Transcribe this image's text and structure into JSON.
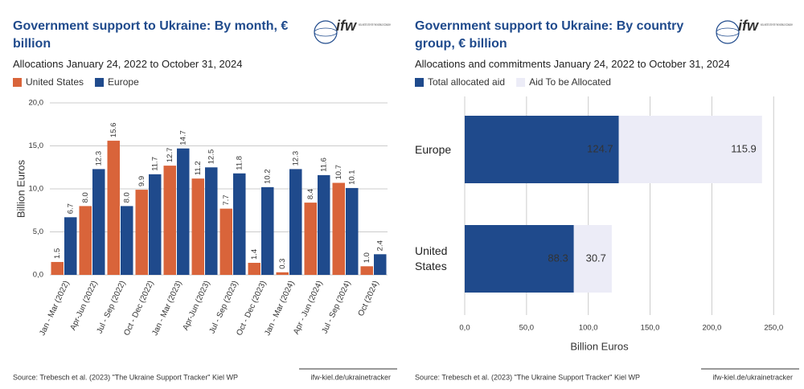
{
  "chart_data": [
    {
      "type": "bar",
      "title": "Government support to Ukraine: By month, € billion",
      "subtitle": "Allocations January 24, 2022 to October 31, 2024",
      "logo": {
        "name": "ifw",
        "text": "KIEL INSTITUTE FOR THE WORLD ECONOMY"
      },
      "ylabel": "Billion Euros",
      "categories": [
        "Jan - Mar (2022)",
        "Apr-Jun (2022)",
        "Jul - Sep (2022)",
        "Oct - Dec (2022)",
        "Jan - Mar (2023)",
        "Apr-Jun (2023)",
        "Jul - Sep (2023)",
        "Oct - Dec (2023)",
        "Jan - Mar (2024)",
        "Apr - Jun (2024)",
        "Jul - Sep (2024)",
        "Oct (2024)"
      ],
      "series": [
        {
          "name": "United States",
          "color": "#d9643a",
          "values": [
            1.5,
            8.0,
            15.6,
            9.9,
            12.7,
            11.2,
            7.7,
            1.4,
            0.3,
            8.4,
            10.7,
            1.0
          ],
          "value_labels": [
            "1.5",
            "8.0",
            "15.6",
            "9.9",
            "12.7",
            "11.2",
            "7.7",
            "1.4",
            "0.3",
            "8.4",
            "10.7",
            "1.0"
          ]
        },
        {
          "name": "Europe",
          "color": "#1f4a8c",
          "values": [
            6.7,
            12.3,
            8.0,
            11.7,
            14.7,
            12.5,
            11.8,
            10.2,
            12.3,
            11.6,
            10.1,
            2.4
          ],
          "value_labels": [
            "6.7",
            "12.3",
            "8.0",
            "11.7",
            "14.7",
            "12.5",
            "11.8",
            "10.2",
            "12.3",
            "11.6",
            "10.1",
            "2.4"
          ]
        }
      ],
      "ylim": [
        0,
        20
      ],
      "yticks": [
        {
          "value": 0,
          "label": "0,0"
        },
        {
          "value": 5,
          "label": "5,0"
        },
        {
          "value": 10,
          "label": "10,0"
        },
        {
          "value": 15,
          "label": "15,0"
        },
        {
          "value": 20,
          "label": "20,0"
        }
      ],
      "grid": true,
      "source": "Source: Trebesch et al. (2023) \"The Ukraine Support Tracker\" Kiel WP",
      "link": "ifw-kiel.de/ukrainetracker"
    },
    {
      "type": "barh",
      "stacked": true,
      "title": "Government support to Ukraine: By country group, € billion",
      "subtitle": "Allocations and commitments January 24, 2022 to October 31, 2024",
      "logo": {
        "name": "ifw",
        "text": "KIEL INSTITUTE FOR THE WORLD ECONOMY"
      },
      "xlabel": "Billion Euros",
      "categories": [
        "Europe",
        "United States"
      ],
      "series": [
        {
          "name": "Total allocated aid",
          "color": "#1f4a8c",
          "values": [
            124.7,
            88.3
          ]
        },
        {
          "name": "Aid To be Allocated",
          "color": "#ececf7",
          "values": [
            115.9,
            30.7
          ]
        }
      ],
      "xlim": [
        0,
        270
      ],
      "xticks": [
        {
          "value": 0,
          "label": "0,0"
        },
        {
          "value": 50,
          "label": "50,0"
        },
        {
          "value": 100,
          "label": "100,0"
        },
        {
          "value": 150,
          "label": "150,0"
        },
        {
          "value": 200,
          "label": "200,0"
        },
        {
          "value": 250,
          "label": "250,0"
        }
      ],
      "grid": true,
      "source": "Source: Trebesch et al. (2023) \"The Ukraine Support Tracker\" Kiel WP",
      "link": "ifw-kiel.de/ukrainetracker"
    }
  ]
}
